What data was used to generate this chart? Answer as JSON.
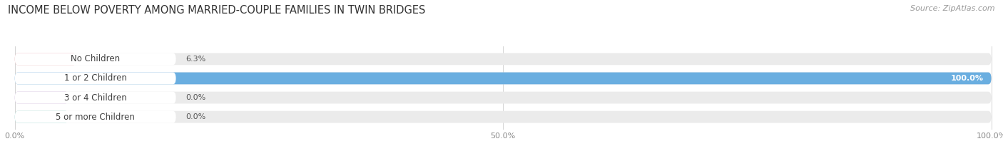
{
  "title": "INCOME BELOW POVERTY AMONG MARRIED-COUPLE FAMILIES IN TWIN BRIDGES",
  "source": "Source: ZipAtlas.com",
  "categories": [
    "No Children",
    "1 or 2 Children",
    "3 or 4 Children",
    "5 or more Children"
  ],
  "values": [
    6.3,
    100.0,
    0.0,
    0.0
  ],
  "bar_colors": [
    "#f0a0a8",
    "#6aaee0",
    "#c8a8d8",
    "#78c8c0"
  ],
  "bg_bar_color": "#ebebeb",
  "xlim": [
    0,
    100
  ],
  "xtick_labels": [
    "0.0%",
    "50.0%",
    "100.0%"
  ],
  "figsize": [
    14.06,
    2.33
  ],
  "dpi": 100,
  "title_fontsize": 10.5,
  "label_fontsize": 8.5,
  "value_fontsize": 8.0,
  "source_fontsize": 8.0,
  "stub_values": [
    6.3,
    100.0,
    6.0,
    6.0
  ]
}
